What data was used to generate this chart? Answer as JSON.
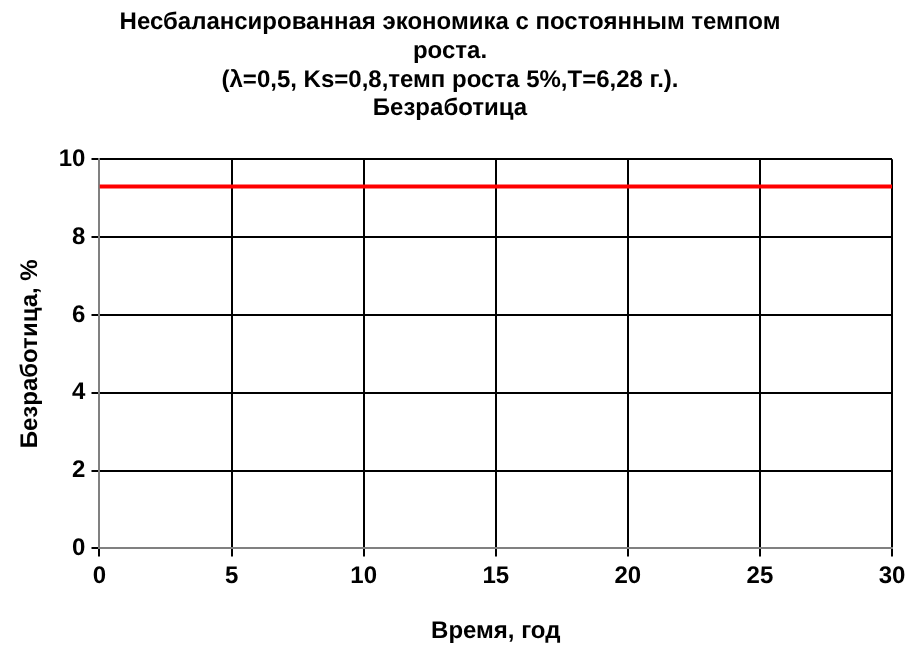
{
  "chart_data": {
    "type": "line",
    "title": "Несбалансированная экономика с постоянным темпом\nроста.\n(λ=0,5, Ks=0,8,темп роста 5%,T=6,28 г.).\nБезработица",
    "xlabel": "Время, год",
    "ylabel": "Безработица, %",
    "x": [
      0,
      30
    ],
    "series": [
      {
        "color": "#ff0000",
        "values": [
          9.3,
          9.3
        ]
      }
    ],
    "xlim": [
      0,
      30
    ],
    "xticks": [
      0,
      5,
      10,
      15,
      20,
      25,
      30
    ],
    "ylim": [
      0,
      10
    ],
    "yticks": [
      0,
      2,
      4,
      6,
      8,
      10
    ],
    "grid": true,
    "legend": false,
    "marker": "none",
    "line_style": "solid"
  }
}
